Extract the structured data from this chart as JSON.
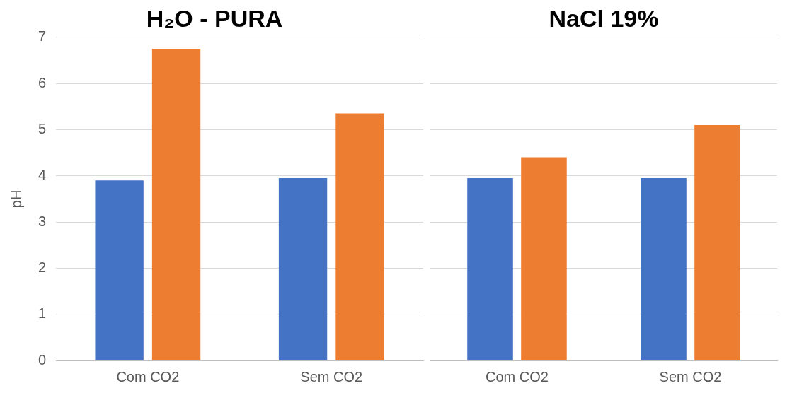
{
  "chart_data": [
    {
      "type": "bar",
      "title": "H₂O - PURA",
      "ylabel": "pH",
      "categories": [
        "Com CO2",
        "Sem CO2"
      ],
      "series": [
        {
          "color": "#4472c4",
          "values": [
            3.9,
            3.95
          ]
        },
        {
          "color": "#ed7d31",
          "values": [
            6.75,
            5.35
          ]
        }
      ],
      "ylim": [
        0,
        7
      ],
      "yticks": [
        0,
        1,
        2,
        3,
        4,
        5,
        6,
        7
      ],
      "grid": "y"
    },
    {
      "type": "bar",
      "title": "NaCl 19%",
      "categories": [
        "Com CO2",
        "Sem CO2"
      ],
      "series": [
        {
          "color": "#4472c4",
          "values": [
            3.95,
            3.95
          ]
        },
        {
          "color": "#ed7d31",
          "values": [
            4.4,
            5.1
          ]
        }
      ],
      "ylim": [
        0,
        7
      ],
      "yticks": [
        0,
        1,
        2,
        3,
        4,
        5,
        6,
        7
      ],
      "grid": "y",
      "tick_labels": "x"
    }
  ]
}
